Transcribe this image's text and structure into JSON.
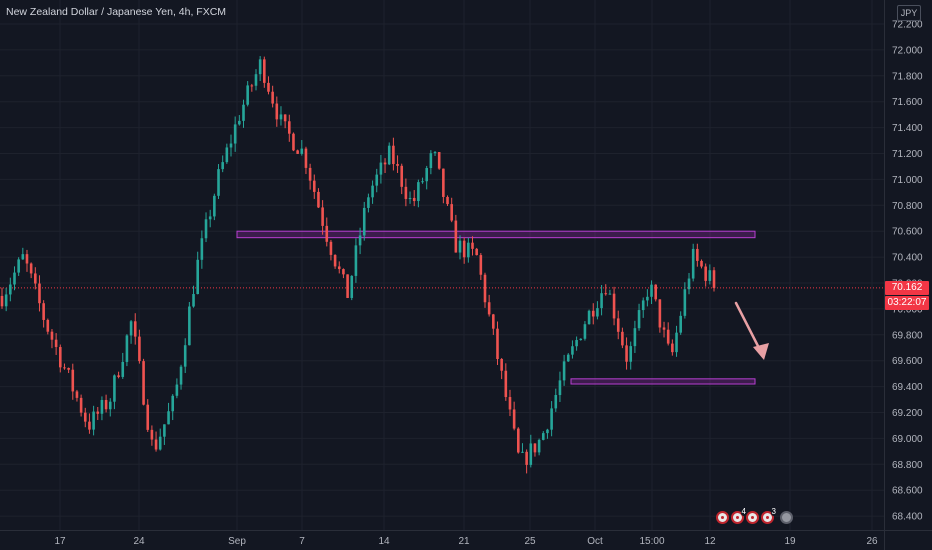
{
  "header": {
    "title": "New Zealand Dollar / Japanese Yen, 4h, FXCM",
    "currency": "JPY"
  },
  "price_tag": {
    "price": "70.162",
    "countdown": "03:22:07"
  },
  "events": {
    "count_a": "4",
    "count_b": "3"
  },
  "colors": {
    "background": "#131722",
    "up": "#26a69a",
    "down": "#ef5350",
    "zone": "#9c27b0",
    "arrow": "#e8a0a4",
    "price_line": "#f23645",
    "axis_text": "#b2b5be",
    "grid": "#1e222d"
  },
  "chart_data": {
    "type": "candlestick",
    "title": "New Zealand Dollar / Japanese Yen, 4h, FXCM",
    "y_axis": {
      "position": "right",
      "range": [
        68.3,
        72.3
      ],
      "ticks": [
        "72.200",
        "72.000",
        "71.800",
        "71.600",
        "71.400",
        "71.200",
        "71.000",
        "70.800",
        "70.600",
        "70.400",
        "70.200",
        "70.000",
        "69.800",
        "69.600",
        "69.400",
        "69.200",
        "69.000",
        "68.800",
        "68.600",
        "68.400"
      ]
    },
    "x_axis": {
      "labels": [
        "17",
        "24",
        "Sep",
        "7",
        "14",
        "21",
        "25",
        "Oct",
        "15:00",
        "12",
        "19",
        "26"
      ]
    },
    "grid": true,
    "last_price": 70.162,
    "zones": [
      {
        "from_price": 70.55,
        "to_price": 70.6
      },
      {
        "from_price": 69.42,
        "to_price": 69.46
      }
    ],
    "anchors": [
      [
        70.1,
        70.0
      ],
      [
        70.4,
        70.2
      ],
      [
        69.9,
        70.0
      ],
      [
        69.5,
        69.6
      ],
      [
        69.1,
        69.3
      ],
      [
        69.3,
        69.4
      ],
      [
        69.9,
        69.7
      ],
      [
        68.9,
        69.0
      ],
      [
        69.3,
        69.1
      ],
      [
        70.3,
        69.9
      ],
      [
        71.0,
        70.8
      ],
      [
        71.5,
        71.3
      ],
      [
        71.9,
        71.8
      ],
      [
        71.4,
        71.6
      ],
      [
        71.2,
        71.1
      ],
      [
        70.6,
        70.8
      ],
      [
        70.1,
        70.2
      ],
      [
        70.9,
        70.8
      ],
      [
        71.2,
        71.0
      ],
      [
        70.8,
        71.0
      ],
      [
        71.2,
        71.0
      ],
      [
        70.5,
        70.8
      ],
      [
        70.4,
        70.6
      ],
      [
        69.6,
        69.8
      ],
      [
        68.8,
        69.0
      ],
      [
        69.0,
        69.1
      ],
      [
        69.5,
        69.3
      ],
      [
        69.9,
        69.7
      ],
      [
        70.2,
        70.1
      ],
      [
        69.6,
        69.7
      ],
      [
        70.2,
        70.0
      ],
      [
        69.6,
        69.5
      ],
      [
        70.4,
        70.3
      ],
      [
        70.2,
        70.2
      ]
    ],
    "legend": "none"
  }
}
